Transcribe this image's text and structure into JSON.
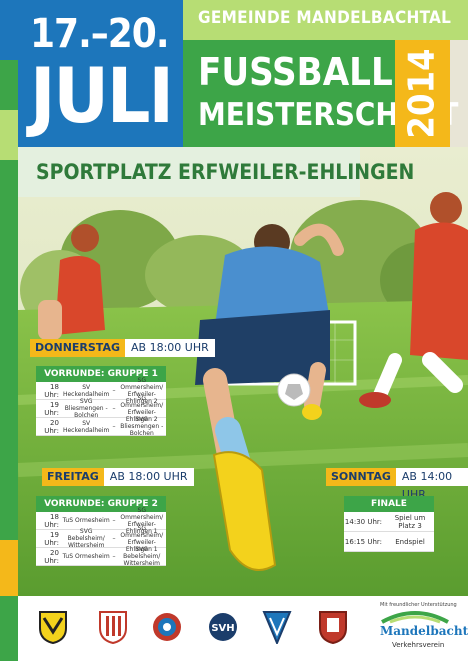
{
  "header": {
    "date_range": "17.–20.",
    "month": "JULI",
    "municipality": "GEMEINDE MANDELBACHTAL",
    "title_line1": "FUSSBALL",
    "title_line2": "MEISTERSCHAFT",
    "year": "2014",
    "venue": "SPORTPLATZ ERFWEILER-EHLINGEN"
  },
  "colors": {
    "blue": "#1d76bb",
    "green": "#3da548",
    "light_green": "#b7dd74",
    "yellow": "#f4b81a",
    "navy": "#1b3d6b"
  },
  "thursday": {
    "day": "DONNERSTAG",
    "time": "AB 18:00 UHR",
    "group": "VORRUNDE: GRUPPE 1",
    "matches": [
      {
        "time": "18 Uhr:",
        "home": "SV Heckendalheim",
        "away": "SG Ommersheim/ Erfweiler-Ehlingen 2"
      },
      {
        "time": "19 Uhr:",
        "home": "SVG Bliesmengen - Bolchen",
        "away": "SG Ommersheim/ Erfweiler-Ehlingen 2"
      },
      {
        "time": "20 Uhr:",
        "home": "SV Heckendalheim",
        "away": "SVG Bliesmengen - Bolchen"
      }
    ]
  },
  "friday": {
    "day": "FREITAG",
    "time": "AB 18:00 UHR",
    "group": "VORRUNDE: GRUPPE 2",
    "matches": [
      {
        "time": "18 Uhr:",
        "home": "TuS Ormesheim",
        "away": "SG Ommersheim/ Erfweiler-Ehlingen 1"
      },
      {
        "time": "19 Uhr:",
        "home": "SVG Bebelsheim/ Wittersheim",
        "away": "SG Ommersheim/ Erfweiler-Ehlingen 1"
      },
      {
        "time": "20 Uhr:",
        "home": "TuS Ormesheim",
        "away": "SVG Bebelsheim/ Wittersheim"
      }
    ]
  },
  "sunday": {
    "day": "SONNTAG",
    "time": "AB 14:00 UHR",
    "group": "FINALE",
    "matches": [
      {
        "time": "14:30 Uhr:",
        "game": "Spiel um Platz 3"
      },
      {
        "time": "16:15 Uhr:",
        "game": "Endspiel"
      }
    ]
  },
  "sponsor": {
    "tagline": "Mit freundlicher Unterstützung",
    "name": "Mandelbachtal",
    "sub": "Verkehrsverein"
  },
  "logos": [
    "club-crest-1",
    "club-crest-2",
    "club-crest-3",
    "club-crest-svh",
    "club-crest-5",
    "club-crest-6"
  ]
}
